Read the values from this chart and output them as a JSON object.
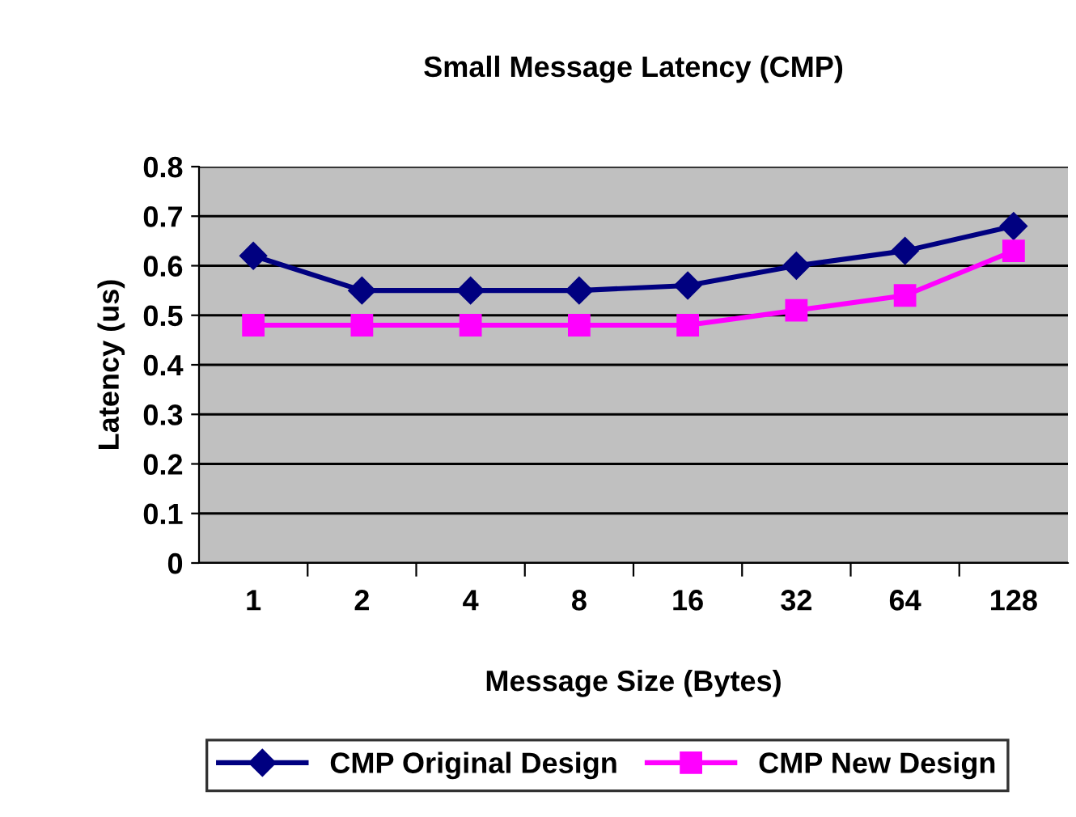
{
  "chart_data": {
    "type": "line",
    "title": "Small Message Latency (CMP)",
    "xlabel": "Message Size (Bytes)",
    "ylabel": "Latency (us)",
    "categories": [
      "1",
      "2",
      "4",
      "8",
      "16",
      "32",
      "64",
      "128"
    ],
    "series": [
      {
        "name": "CMP Original Design",
        "color": "#000080",
        "marker": "diamond",
        "values": [
          0.62,
          0.55,
          0.55,
          0.55,
          0.56,
          0.6,
          0.63,
          0.68
        ]
      },
      {
        "name": "CMP New Design",
        "color": "#ff00ff",
        "marker": "square",
        "values": [
          0.48,
          0.48,
          0.48,
          0.48,
          0.48,
          0.51,
          0.54,
          0.63
        ]
      }
    ],
    "ylim": [
      0,
      0.8
    ],
    "yticks": [
      {
        "value": 0,
        "label": "0"
      },
      0.1,
      0.2,
      0.3,
      0.4,
      0.5,
      0.6,
      0.7,
      0.8
    ],
    "grid": "y",
    "legend": "bottom",
    "line_style": "solid"
  }
}
